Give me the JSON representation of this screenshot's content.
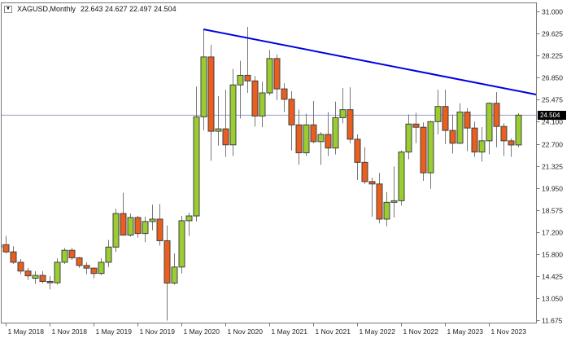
{
  "header": {
    "dropdown_icon": "▼",
    "symbol_period": "XAGUSD,Monthly",
    "ohlc_text": "22.643 24.627 22.497 24.504"
  },
  "price_tag": {
    "label": "24.504"
  },
  "colors": {
    "background": "#ffffff",
    "bull": "#9ACD32",
    "bear": "#EA5E1E",
    "wick": "#777777",
    "candle_border": "#404040",
    "trendline": "#0000E0",
    "price_line": "#9999CC",
    "frame": "#777777",
    "label_text": "#222222",
    "tag_bg": "#000000",
    "tag_text": "#ffffff"
  },
  "chart_data": {
    "type": "candlestick",
    "symbol": "XAGUSD",
    "timeframe": "Monthly",
    "title": "XAGUSD,Monthly 22.643 24.627 22.497 24.504",
    "current_bar": {
      "open": 22.643,
      "high": 24.627,
      "low": 22.497,
      "close": 24.504
    },
    "grid": "off",
    "y_axis": {
      "max": 31.0,
      "min": 11.675,
      "ticks": [
        "31.000",
        "29.625",
        "28.225",
        "26.850",
        "25.475",
        "24.100",
        "22.700",
        "21.325",
        "19.950",
        "18.575",
        "17.200",
        "15.800",
        "14.425",
        "13.050",
        "11.675"
      ]
    },
    "x_axis": {
      "ticks": [
        {
          "label": "1 May 2018",
          "t": "2018-05"
        },
        {
          "label": "1 Nov 2018",
          "t": "2018-11"
        },
        {
          "label": "1 May 2019",
          "t": "2019-05"
        },
        {
          "label": "1 Nov 2019",
          "t": "2019-11"
        },
        {
          "label": "1 May 2020",
          "t": "2020-05"
        },
        {
          "label": "1 Nov 2020",
          "t": "2020-11"
        },
        {
          "label": "1 May 2021",
          "t": "2021-05"
        },
        {
          "label": "1 Nov 2021",
          "t": "2021-11"
        },
        {
          "label": "1 May 2022",
          "t": "2022-05"
        },
        {
          "label": "1 Nov 2022",
          "t": "2022-11"
        },
        {
          "label": "1 May 2023",
          "t": "2023-05"
        },
        {
          "label": "1 Nov 2023",
          "t": "2023-11"
        }
      ]
    },
    "price_line": {
      "value": 24.504
    },
    "trendline": {
      "points": [
        {
          "t": "2020-08",
          "value": 29.88
        },
        {
          "t": "2024-05",
          "value": 25.84
        }
      ],
      "extend_right": true
    },
    "candles": [
      {
        "t": "2018-04",
        "o": 16.25,
        "h": 16.9,
        "l": 16.05,
        "c": 16.4
      },
      {
        "t": "2018-05",
        "o": 16.4,
        "h": 16.95,
        "l": 15.85,
        "c": 15.95
      },
      {
        "t": "2018-06",
        "o": 15.95,
        "h": 16.3,
        "l": 15.2,
        "c": 15.3
      },
      {
        "t": "2018-07",
        "o": 15.3,
        "h": 15.5,
        "l": 14.55,
        "c": 14.75
      },
      {
        "t": "2018-08",
        "o": 14.75,
        "h": 14.95,
        "l": 14.2,
        "c": 14.45
      },
      {
        "t": "2018-09",
        "o": 14.3,
        "h": 14.75,
        "l": 13.95,
        "c": 14.48
      },
      {
        "t": "2018-10",
        "o": 14.48,
        "h": 14.75,
        "l": 13.98,
        "c": 14.1
      },
      {
        "t": "2018-11",
        "o": 14.1,
        "h": 14.45,
        "l": 13.6,
        "c": 14.02
      },
      {
        "t": "2018-12",
        "o": 14.02,
        "h": 15.55,
        "l": 13.9,
        "c": 15.3
      },
      {
        "t": "2019-01",
        "o": 15.3,
        "h": 16.2,
        "l": 15.2,
        "c": 16.05
      },
      {
        "t": "2019-02",
        "o": 16.05,
        "h": 16.2,
        "l": 15.45,
        "c": 15.58
      },
      {
        "t": "2019-03",
        "o": 15.58,
        "h": 15.64,
        "l": 14.95,
        "c": 15.1
      },
      {
        "t": "2019-04",
        "o": 15.1,
        "h": 15.3,
        "l": 14.55,
        "c": 14.93
      },
      {
        "t": "2019-05",
        "o": 14.93,
        "h": 14.97,
        "l": 14.3,
        "c": 14.6
      },
      {
        "t": "2019-06",
        "o": 14.6,
        "h": 15.55,
        "l": 14.5,
        "c": 15.3
      },
      {
        "t": "2019-07",
        "o": 15.3,
        "h": 16.7,
        "l": 15.0,
        "c": 16.25
      },
      {
        "t": "2019-08",
        "o": 16.25,
        "h": 18.65,
        "l": 15.95,
        "c": 18.35
      },
      {
        "t": "2019-09",
        "o": 18.35,
        "h": 19.65,
        "l": 17.45,
        "c": 17.0
      },
      {
        "t": "2019-10",
        "o": 17.0,
        "h": 18.35,
        "l": 16.9,
        "c": 18.1
      },
      {
        "t": "2019-11",
        "o": 18.1,
        "h": 18.2,
        "l": 16.85,
        "c": 17.1
      },
      {
        "t": "2019-12",
        "o": 17.1,
        "h": 18.15,
        "l": 16.55,
        "c": 17.85
      },
      {
        "t": "2020-01",
        "o": 17.85,
        "h": 18.9,
        "l": 17.3,
        "c": 18.0
      },
      {
        "t": "2020-02",
        "o": 18.0,
        "h": 18.95,
        "l": 16.35,
        "c": 16.65
      },
      {
        "t": "2020-03",
        "o": 16.65,
        "h": 17.6,
        "l": 11.65,
        "c": 14.0
      },
      {
        "t": "2020-04",
        "o": 14.0,
        "h": 15.85,
        "l": 13.9,
        "c": 15.0
      },
      {
        "t": "2020-05",
        "o": 15.0,
        "h": 18.2,
        "l": 14.6,
        "c": 17.9
      },
      {
        "t": "2020-06",
        "o": 17.9,
        "h": 18.4,
        "l": 16.95,
        "c": 18.2
      },
      {
        "t": "2020-07",
        "o": 18.2,
        "h": 26.3,
        "l": 17.85,
        "c": 24.4
      },
      {
        "t": "2020-08",
        "o": 24.4,
        "h": 29.86,
        "l": 23.55,
        "c": 28.15
      },
      {
        "t": "2020-09",
        "o": 28.15,
        "h": 28.9,
        "l": 21.65,
        "c": 23.5
      },
      {
        "t": "2020-10",
        "o": 23.5,
        "h": 25.7,
        "l": 22.6,
        "c": 23.65
      },
      {
        "t": "2020-11",
        "o": 23.65,
        "h": 26.1,
        "l": 21.9,
        "c": 22.65
      },
      {
        "t": "2020-12",
        "o": 22.65,
        "h": 27.4,
        "l": 21.95,
        "c": 26.4
      },
      {
        "t": "2021-01",
        "o": 26.4,
        "h": 27.9,
        "l": 24.3,
        "c": 27.0
      },
      {
        "t": "2021-02",
        "o": 27.0,
        "h": 30.03,
        "l": 25.9,
        "c": 26.65
      },
      {
        "t": "2021-03",
        "o": 26.65,
        "h": 26.95,
        "l": 23.8,
        "c": 24.45
      },
      {
        "t": "2021-04",
        "o": 24.45,
        "h": 26.6,
        "l": 23.75,
        "c": 25.9
      },
      {
        "t": "2021-05",
        "o": 25.9,
        "h": 28.6,
        "l": 25.75,
        "c": 28.05
      },
      {
        "t": "2021-06",
        "o": 28.05,
        "h": 28.3,
        "l": 25.45,
        "c": 26.15
      },
      {
        "t": "2021-07",
        "o": 26.15,
        "h": 26.5,
        "l": 24.7,
        "c": 25.5
      },
      {
        "t": "2021-08",
        "o": 25.5,
        "h": 26.0,
        "l": 22.3,
        "c": 23.9
      },
      {
        "t": "2021-09",
        "o": 23.9,
        "h": 24.85,
        "l": 21.4,
        "c": 22.15
      },
      {
        "t": "2021-10",
        "o": 22.15,
        "h": 24.6,
        "l": 21.95,
        "c": 23.9
      },
      {
        "t": "2021-11",
        "o": 23.9,
        "h": 25.4,
        "l": 22.75,
        "c": 22.85
      },
      {
        "t": "2021-12",
        "o": 22.85,
        "h": 23.45,
        "l": 21.4,
        "c": 23.3
      },
      {
        "t": "2022-01",
        "o": 23.3,
        "h": 24.7,
        "l": 21.95,
        "c": 22.45
      },
      {
        "t": "2022-02",
        "o": 22.45,
        "h": 25.35,
        "l": 22.05,
        "c": 24.35
      },
      {
        "t": "2022-03",
        "o": 24.35,
        "h": 26.2,
        "l": 24.0,
        "c": 24.85
      },
      {
        "t": "2022-04",
        "o": 24.85,
        "h": 26.25,
        "l": 22.75,
        "c": 23.0
      },
      {
        "t": "2022-05",
        "o": 23.0,
        "h": 23.3,
        "l": 20.45,
        "c": 21.55
      },
      {
        "t": "2022-06",
        "o": 21.55,
        "h": 22.5,
        "l": 20.2,
        "c": 20.35
      },
      {
        "t": "2022-07",
        "o": 20.35,
        "h": 20.6,
        "l": 18.15,
        "c": 20.2
      },
      {
        "t": "2022-08",
        "o": 20.2,
        "h": 20.9,
        "l": 17.75,
        "c": 18.0
      },
      {
        "t": "2022-09",
        "o": 18.0,
        "h": 19.7,
        "l": 17.55,
        "c": 19.05
      },
      {
        "t": "2022-10",
        "o": 19.05,
        "h": 21.3,
        "l": 18.1,
        "c": 19.15
      },
      {
        "t": "2022-11",
        "o": 19.15,
        "h": 22.3,
        "l": 18.85,
        "c": 22.2
      },
      {
        "t": "2022-12",
        "o": 22.2,
        "h": 24.55,
        "l": 21.75,
        "c": 23.95
      },
      {
        "t": "2023-01",
        "o": 23.95,
        "h": 24.65,
        "l": 22.75,
        "c": 23.75
      },
      {
        "t": "2023-02",
        "o": 23.75,
        "h": 24.05,
        "l": 20.4,
        "c": 20.9
      },
      {
        "t": "2023-03",
        "o": 20.9,
        "h": 24.15,
        "l": 19.9,
        "c": 24.1
      },
      {
        "t": "2023-04",
        "o": 24.1,
        "h": 26.1,
        "l": 23.3,
        "c": 25.05
      },
      {
        "t": "2023-05",
        "o": 25.05,
        "h": 26.1,
        "l": 22.7,
        "c": 23.55
      },
      {
        "t": "2023-06",
        "o": 23.55,
        "h": 24.55,
        "l": 22.1,
        "c": 22.75
      },
      {
        "t": "2023-07",
        "o": 22.75,
        "h": 25.25,
        "l": 22.7,
        "c": 24.7
      },
      {
        "t": "2023-08",
        "o": 24.7,
        "h": 24.95,
        "l": 22.25,
        "c": 23.7
      },
      {
        "t": "2023-09",
        "o": 23.7,
        "h": 24.1,
        "l": 21.9,
        "c": 22.2
      },
      {
        "t": "2023-10",
        "o": 22.2,
        "h": 23.75,
        "l": 21.6,
        "c": 22.9
      },
      {
        "t": "2023-11",
        "o": 22.9,
        "h": 25.3,
        "l": 22.05,
        "c": 25.25
      },
      {
        "t": "2023-12",
        "o": 25.25,
        "h": 25.95,
        "l": 22.5,
        "c": 23.8
      },
      {
        "t": "2024-01",
        "o": 23.8,
        "h": 24.0,
        "l": 21.95,
        "c": 22.9
      },
      {
        "t": "2024-02",
        "o": 22.9,
        "h": 23.05,
        "l": 21.9,
        "c": 22.64
      },
      {
        "t": "2024-03",
        "o": 22.643,
        "h": 24.627,
        "l": 22.497,
        "c": 24.504
      }
    ]
  }
}
